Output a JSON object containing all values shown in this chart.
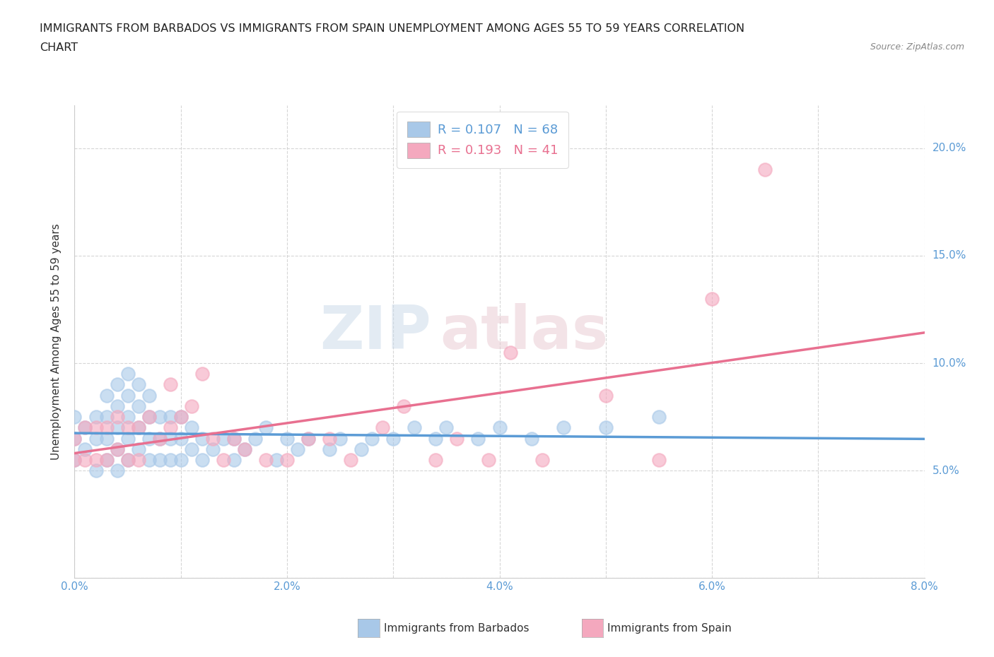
{
  "title_line1": "IMMIGRANTS FROM BARBADOS VS IMMIGRANTS FROM SPAIN UNEMPLOYMENT AMONG AGES 55 TO 59 YEARS CORRELATION",
  "title_line2": "CHART",
  "source_text": "Source: ZipAtlas.com",
  "ylabel": "Unemployment Among Ages 55 to 59 years",
  "xlim": [
    0.0,
    0.08
  ],
  "ylim": [
    0.0,
    0.22
  ],
  "xtick_vals": [
    0.0,
    0.01,
    0.02,
    0.03,
    0.04,
    0.05,
    0.06,
    0.07,
    0.08
  ],
  "xticklabels": [
    "0.0%",
    "",
    "2.0%",
    "",
    "4.0%",
    "",
    "6.0%",
    "",
    "8.0%"
  ],
  "ytick_vals": [
    0.0,
    0.05,
    0.1,
    0.15,
    0.2
  ],
  "yticklabels_right": [
    "",
    "5.0%",
    "10.0%",
    "15.0%",
    "20.0%"
  ],
  "barbados_color": "#a8c8e8",
  "spain_color": "#f4a8be",
  "barbados_line_color": "#5b9bd5",
  "spain_line_color": "#e87090",
  "legend_label1": "R = 0.107   N = 68",
  "legend_label2": "R = 0.193   N = 41",
  "watermark_zip": "ZIP",
  "watermark_atlas": "atlas",
  "bottom_legend1": "Immigrants from Barbados",
  "bottom_legend2": "Immigrants from Spain",
  "barbados_x": [
    0.0,
    0.0,
    0.0,
    0.001,
    0.001,
    0.002,
    0.002,
    0.002,
    0.003,
    0.003,
    0.003,
    0.003,
    0.004,
    0.004,
    0.004,
    0.004,
    0.004,
    0.005,
    0.005,
    0.005,
    0.005,
    0.005,
    0.006,
    0.006,
    0.006,
    0.006,
    0.007,
    0.007,
    0.007,
    0.007,
    0.008,
    0.008,
    0.008,
    0.009,
    0.009,
    0.009,
    0.01,
    0.01,
    0.01,
    0.011,
    0.011,
    0.012,
    0.012,
    0.013,
    0.014,
    0.015,
    0.015,
    0.016,
    0.017,
    0.018,
    0.019,
    0.02,
    0.021,
    0.022,
    0.024,
    0.025,
    0.027,
    0.028,
    0.03,
    0.032,
    0.034,
    0.035,
    0.038,
    0.04,
    0.043,
    0.046,
    0.05,
    0.055
  ],
  "barbados_y": [
    0.055,
    0.065,
    0.075,
    0.06,
    0.07,
    0.05,
    0.065,
    0.075,
    0.055,
    0.065,
    0.075,
    0.085,
    0.05,
    0.06,
    0.07,
    0.08,
    0.09,
    0.055,
    0.065,
    0.075,
    0.085,
    0.095,
    0.06,
    0.07,
    0.08,
    0.09,
    0.055,
    0.065,
    0.075,
    0.085,
    0.055,
    0.065,
    0.075,
    0.055,
    0.065,
    0.075,
    0.055,
    0.065,
    0.075,
    0.06,
    0.07,
    0.055,
    0.065,
    0.06,
    0.065,
    0.055,
    0.065,
    0.06,
    0.065,
    0.07,
    0.055,
    0.065,
    0.06,
    0.065,
    0.06,
    0.065,
    0.06,
    0.065,
    0.065,
    0.07,
    0.065,
    0.07,
    0.065,
    0.07,
    0.065,
    0.07,
    0.07,
    0.075
  ],
  "spain_x": [
    0.0,
    0.0,
    0.001,
    0.001,
    0.002,
    0.002,
    0.003,
    0.003,
    0.004,
    0.004,
    0.005,
    0.005,
    0.006,
    0.006,
    0.007,
    0.008,
    0.009,
    0.009,
    0.01,
    0.011,
    0.012,
    0.013,
    0.014,
    0.015,
    0.016,
    0.018,
    0.02,
    0.022,
    0.024,
    0.026,
    0.029,
    0.031,
    0.034,
    0.036,
    0.039,
    0.041,
    0.044,
    0.05,
    0.055,
    0.06,
    0.065
  ],
  "spain_y": [
    0.055,
    0.065,
    0.055,
    0.07,
    0.055,
    0.07,
    0.055,
    0.07,
    0.06,
    0.075,
    0.055,
    0.07,
    0.055,
    0.07,
    0.075,
    0.065,
    0.07,
    0.09,
    0.075,
    0.08,
    0.095,
    0.065,
    0.055,
    0.065,
    0.06,
    0.055,
    0.055,
    0.065,
    0.065,
    0.055,
    0.07,
    0.08,
    0.055,
    0.065,
    0.055,
    0.105,
    0.055,
    0.085,
    0.055,
    0.13,
    0.19
  ]
}
